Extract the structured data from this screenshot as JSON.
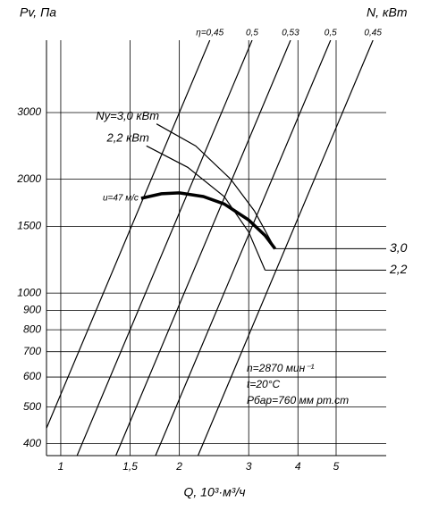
{
  "chart_data": {
    "type": "line",
    "ylabel": "Pv, Па",
    "y2label": "N, кВт",
    "xlabel": "Q, 10³·м³/ч",
    "xscale": "log",
    "yscale": "log",
    "grid": true,
    "xlim": [
      0.92,
      6.7
    ],
    "ylim": [
      372,
      4660
    ],
    "xticks": [
      1,
      {
        "value": 1.5,
        "label": "1,5"
      },
      2,
      3,
      4,
      5
    ],
    "yticks": [
      400,
      500,
      600,
      700,
      800,
      900,
      1000,
      1500,
      2000,
      3000
    ],
    "series": [
      {
        "name": "u=47 м/с",
        "color": "#000000",
        "width": 3.5,
        "x": [
          1.6,
          1.8,
          2.0,
          2.3,
          2.6,
          3.0,
          3.3,
          3.5
        ],
        "values": [
          1780,
          1830,
          1840,
          1800,
          1720,
          1560,
          1420,
          1310
        ]
      },
      {
        "name": "Ny=3,0 кВт",
        "color": "#000000",
        "width": 1.2,
        "x": [
          1.75,
          2.2,
          2.7,
          3.1,
          3.5
        ],
        "values": [
          2800,
          2450,
          2000,
          1650,
          1310
        ]
      },
      {
        "name": "2,2 кВт",
        "color": "#000000",
        "width": 1.2,
        "x": [
          1.65,
          2.1,
          2.6,
          3.0,
          3.3
        ],
        "values": [
          2450,
          2150,
          1800,
          1450,
          1150
        ]
      },
      {
        "name": "η=0,45",
        "color": "#000000",
        "width": 1.2,
        "x": [
          0.86,
          2.39
        ],
        "values": [
          372,
          4660
        ]
      },
      {
        "name": "0,5",
        "color": "#000000",
        "width": 1.2,
        "x": [
          1.1,
          3.06
        ],
        "values": [
          372,
          4660
        ]
      },
      {
        "name": "0,53",
        "color": "#000000",
        "width": 1.2,
        "x": [
          1.38,
          3.83
        ],
        "values": [
          372,
          4660
        ]
      },
      {
        "name": "0,5",
        "color": "#000000",
        "width": 1.2,
        "x": [
          1.74,
          4.84
        ],
        "values": [
          372,
          4660
        ]
      },
      {
        "name": "0,45",
        "color": "#000000",
        "width": 1.2,
        "x": [
          2.23,
          6.2
        ],
        "values": [
          372,
          4660
        ]
      }
    ],
    "annotations": [
      "3,0",
      "2,2",
      "n=2870 мин⁻¹",
      "t=20°C",
      "Рбар=760 мм рт.ст"
    ]
  }
}
